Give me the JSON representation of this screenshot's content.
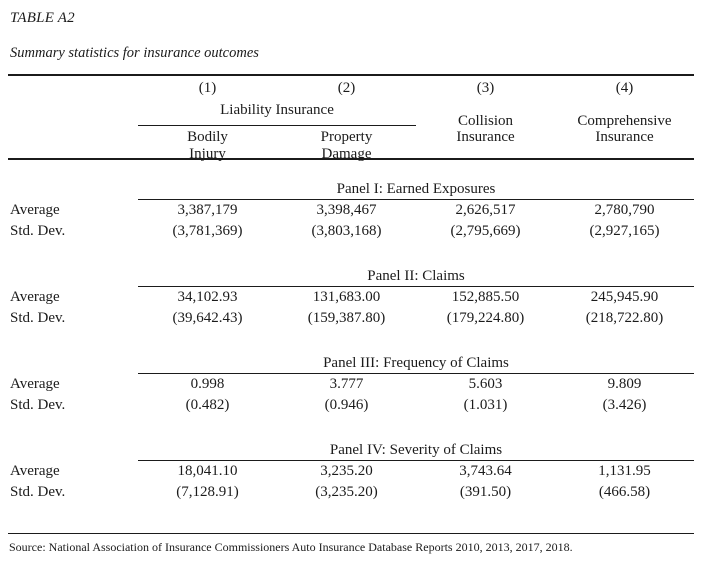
{
  "page": {
    "title": "TABLE A2",
    "subtitle": "Summary statistics for insurance outcomes",
    "source": "Source: National Association of Insurance Commissioners Auto Insurance Database Reports 2010, 2013, 2017, 2018.",
    "text_color": "#1b1b1b",
    "background_color": "#ffffff"
  },
  "header": {
    "column_numbers": [
      "(1)",
      "(2)",
      "(3)",
      "(4)"
    ],
    "liability_group_label": "Liability Insurance",
    "columns": [
      {
        "line1": "Bodily",
        "line2": "Injury"
      },
      {
        "line1": "Property",
        "line2": "Damage"
      },
      {
        "line1": "Collision",
        "line2": "Insurance"
      },
      {
        "line1": "Comprehensive",
        "line2": "Insurance"
      }
    ]
  },
  "panels": [
    {
      "title": "Panel I: Earned Exposures",
      "rows": [
        {
          "label": "Average",
          "values": [
            "3,387,179",
            "3,398,467",
            "2,626,517",
            "2,780,790"
          ]
        },
        {
          "label": "Std. Dev.",
          "values": [
            "(3,781,369)",
            "(3,803,168)",
            "(2,795,669)",
            "(2,927,165)"
          ]
        }
      ]
    },
    {
      "title": "Panel II: Claims",
      "rows": [
        {
          "label": "Average",
          "values": [
            "34,102.93",
            "131,683.00",
            "152,885.50",
            "245,945.90"
          ]
        },
        {
          "label": "Std. Dev.",
          "values": [
            "(39,642.43)",
            "(159,387.80)",
            "(179,224.80)",
            "(218,722.80)"
          ]
        }
      ]
    },
    {
      "title": "Panel III: Frequency of Claims",
      "rows": [
        {
          "label": "Average",
          "values": [
            "0.998",
            "3.777",
            "5.603",
            "9.809"
          ]
        },
        {
          "label": "Std. Dev.",
          "values": [
            "(0.482)",
            "(0.946)",
            "(1.031)",
            "(3.426)"
          ]
        }
      ]
    },
    {
      "title": "Panel IV: Severity of Claims",
      "rows": [
        {
          "label": "Average",
          "values": [
            "18,041.10",
            "3,235.20",
            "3,743.64",
            "1,131.95"
          ]
        },
        {
          "label": "Std. Dev.",
          "values": [
            "(7,128.91)",
            "(3,235.20)",
            "(391.50)",
            "(466.58)"
          ]
        }
      ]
    }
  ]
}
